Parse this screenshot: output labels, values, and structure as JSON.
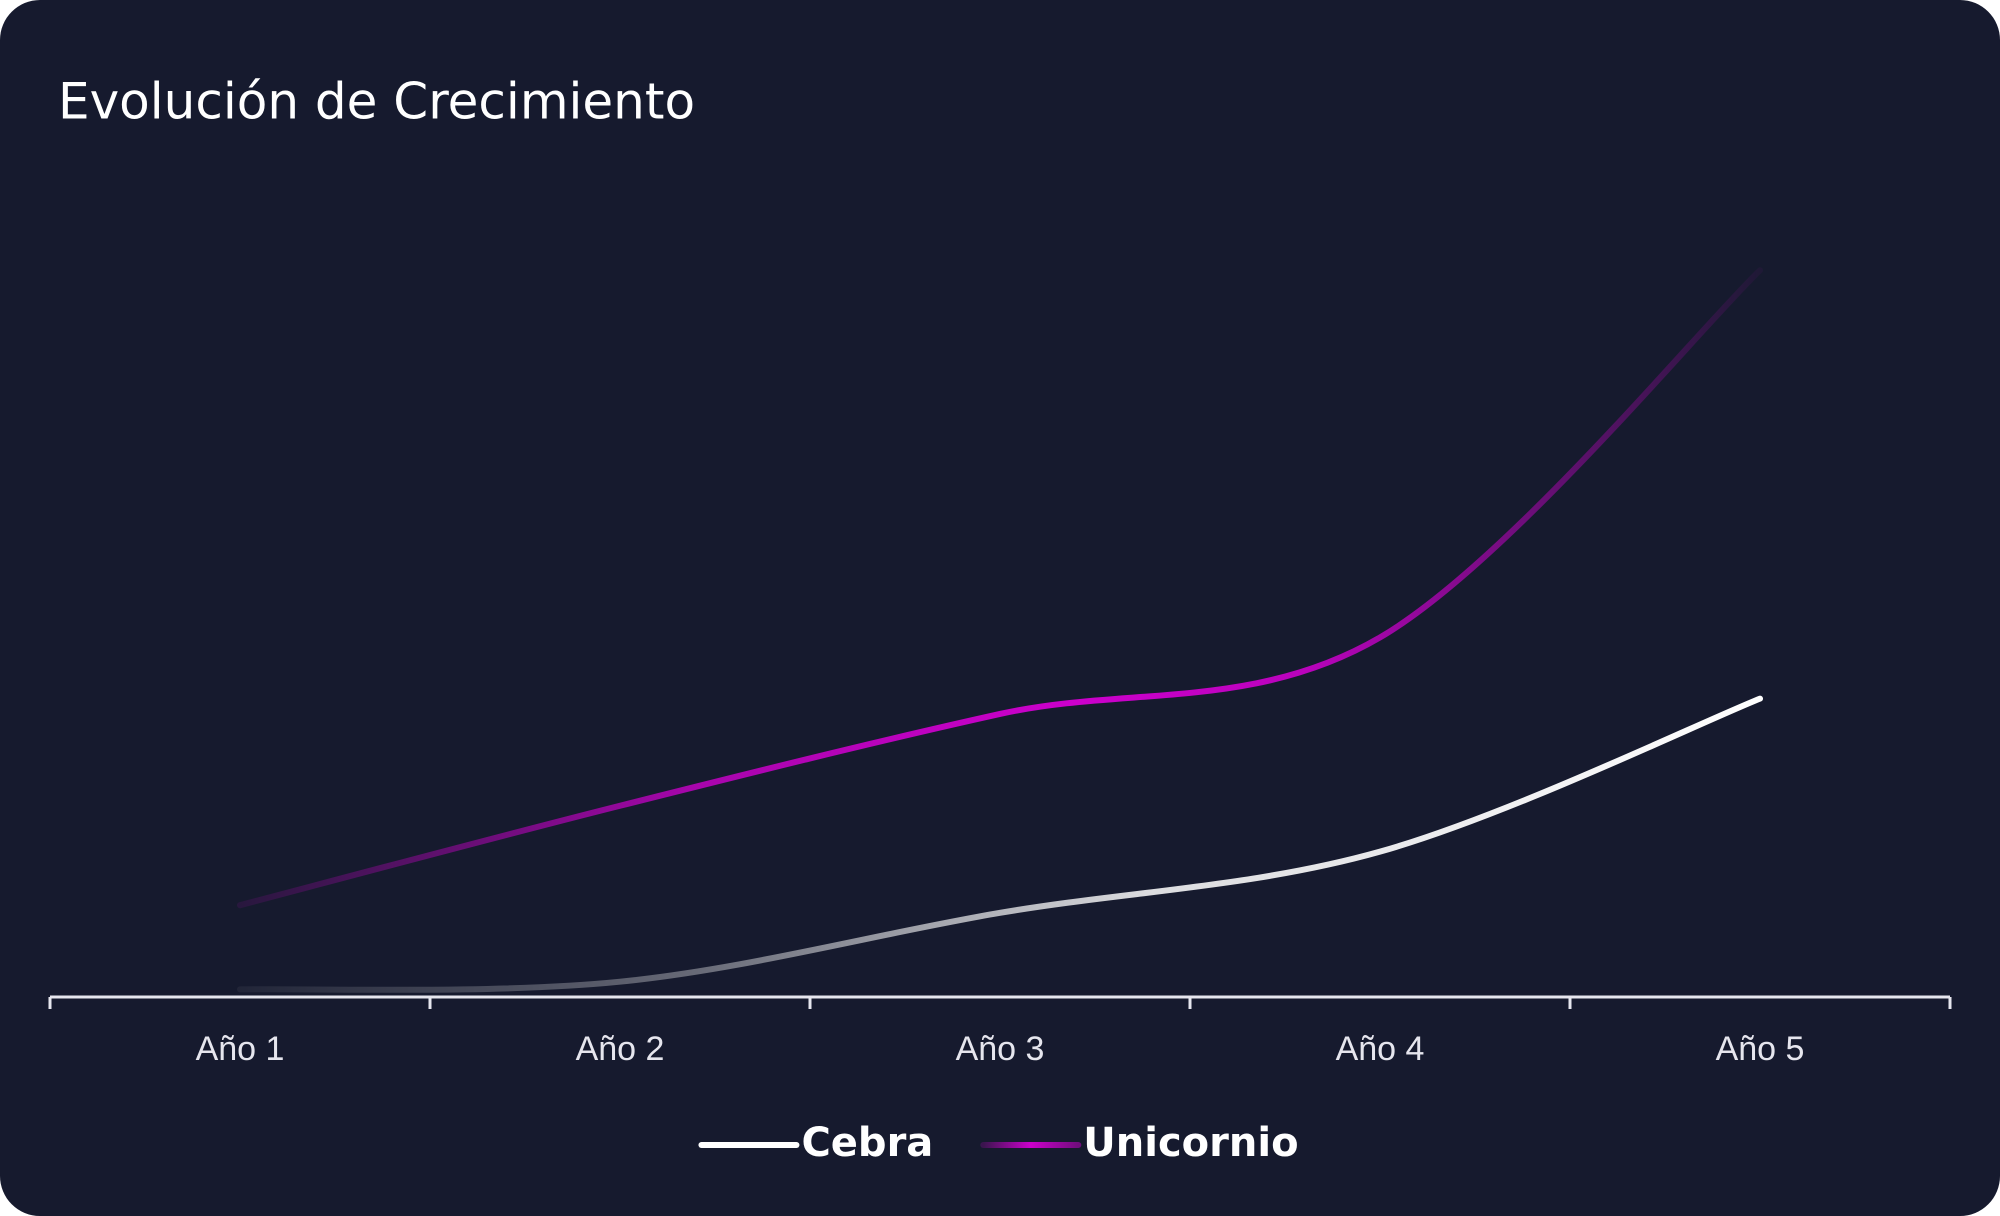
{
  "chart_data": {
    "type": "line",
    "title": "Evolución de Crecimiento",
    "categories": [
      "Año 1",
      "Año 2",
      "Año 3",
      "Año 4",
      "Año 5"
    ],
    "series": [
      {
        "name": "Cebra",
        "color": "#ffffff",
        "values": [
          1,
          2,
          11,
          19,
          39
        ]
      },
      {
        "name": "Unicornio",
        "color": "#cc00cc",
        "values": [
          12,
          25,
          37,
          47,
          95
        ]
      }
    ],
    "ylim": [
      0,
      100
    ],
    "grid": false,
    "legend": "bottom"
  }
}
